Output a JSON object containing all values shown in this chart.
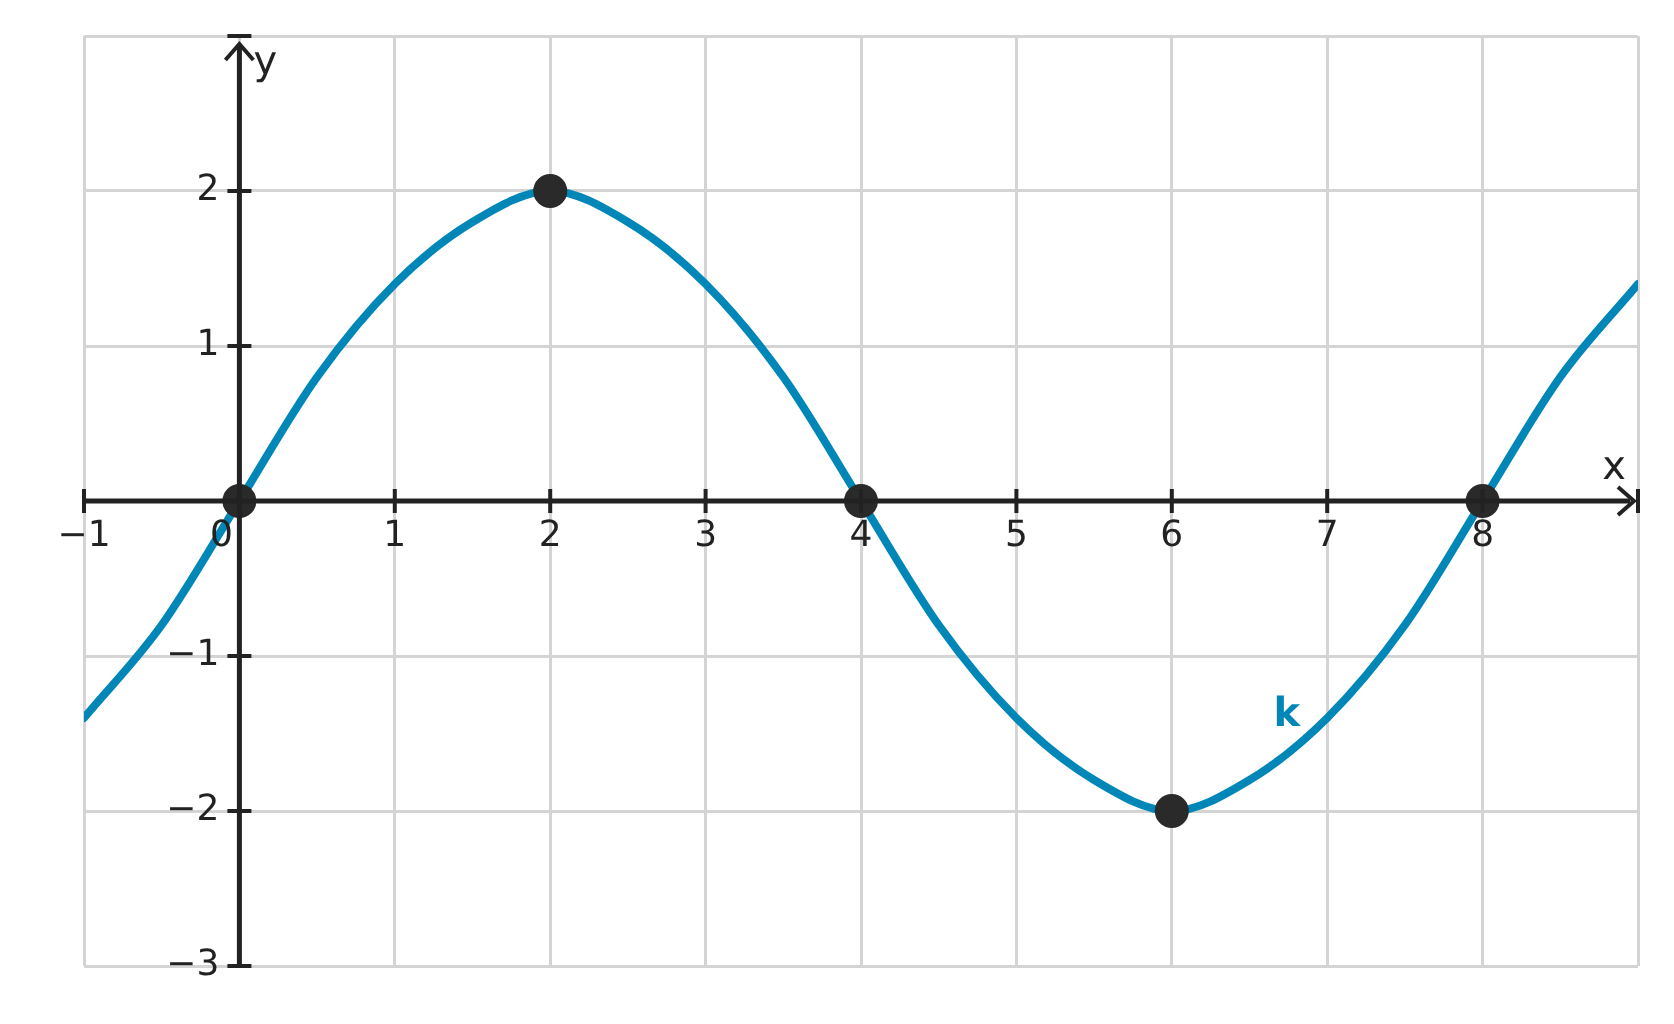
{
  "chart_data": {
    "type": "line",
    "xlabel": "x",
    "ylabel": "y",
    "xlim": [
      -1,
      9
    ],
    "ylim": [
      -3,
      3
    ],
    "xticks": [
      {
        "value": -1,
        "label": "−1"
      },
      0,
      1,
      2,
      3,
      4,
      5,
      6,
      7,
      8,
      {
        "value": 9,
        "label": null
      }
    ],
    "yticks": [
      {
        "value": -3,
        "label": "−3"
      },
      {
        "value": -2,
        "label": "−2"
      },
      {
        "value": -1,
        "label": "−1"
      },
      1,
      2,
      {
        "value": 3,
        "label": null
      }
    ],
    "grid": true,
    "legend": false,
    "series": [
      {
        "name": "k",
        "color": "#0087b8",
        "marker": "none",
        "x": [
          -1,
          -0.5,
          0,
          0.5,
          1,
          1.5,
          2,
          2.5,
          3,
          3.5,
          4,
          4.5,
          5,
          5.5,
          6,
          6.5,
          7,
          7.5,
          8,
          8.5,
          9
        ],
        "values": [
          -1.4,
          -0.8,
          0,
          0.8,
          1.4,
          1.8,
          2,
          1.8,
          1.4,
          0.8,
          0,
          -0.8,
          -1.4,
          -1.8,
          -2,
          -1.8,
          -1.4,
          -0.8,
          0,
          0.8,
          1.4
        ]
      },
      {
        "type": "scatter",
        "color": "#2a2a2a",
        "marker": "circle",
        "x": [
          0,
          2,
          4,
          6,
          8
        ],
        "values": [
          0,
          2,
          0,
          -2,
          0
        ]
      }
    ]
  }
}
